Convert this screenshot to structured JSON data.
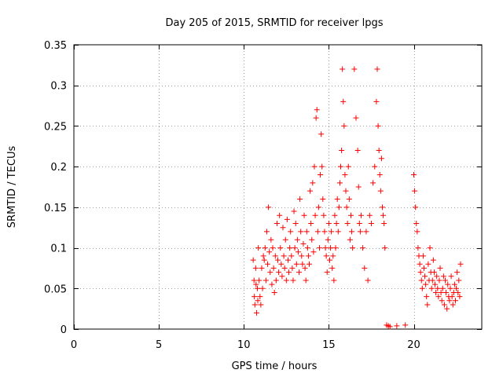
{
  "chart_data": {
    "type": "scatter",
    "title": "Day 205 of 2015, SRMTID for receiver lpgs",
    "xlabel": "GPS time / hours",
    "ylabel": "SRMTID / TECUs",
    "xlim": [
      0,
      24
    ],
    "ylim": [
      0,
      0.35
    ],
    "x_ticks": [
      0,
      5,
      10,
      15,
      20
    ],
    "x_tick_labels": [
      "0",
      "5",
      "10",
      "15",
      "20"
    ],
    "y_ticks": [
      0,
      0.05,
      0.1,
      0.15,
      0.2,
      0.25,
      0.3,
      0.35
    ],
    "y_tick_labels": [
      "0",
      "0.05",
      "0.1",
      "0.15",
      "0.2",
      "0.25",
      "0.3",
      "0.35"
    ],
    "grid": true,
    "marker": "+",
    "series": [
      {
        "name": "SRMTID",
        "color": "#ff0000",
        "x": [
          10.55,
          10.6,
          10.62,
          10.65,
          10.7,
          10.72,
          10.75,
          10.8,
          10.82,
          10.85,
          10.9,
          10.95,
          11.0,
          11.05,
          11.1,
          11.15,
          11.2,
          11.25,
          11.3,
          11.35,
          11.4,
          11.45,
          11.5,
          11.55,
          11.6,
          11.65,
          11.7,
          11.75,
          11.8,
          11.85,
          11.9,
          11.95,
          12.0,
          12.05,
          12.1,
          12.15,
          12.2,
          12.25,
          12.3,
          12.35,
          12.4,
          12.45,
          12.5,
          12.55,
          12.6,
          12.65,
          12.7,
          12.75,
          12.8,
          12.85,
          12.9,
          12.95,
          13.0,
          13.05,
          13.1,
          13.15,
          13.2,
          13.25,
          13.3,
          13.35,
          13.4,
          13.45,
          13.5,
          13.55,
          13.6,
          13.65,
          13.7,
          13.75,
          13.8,
          13.85,
          13.9,
          13.95,
          14.0,
          14.05,
          14.1,
          14.15,
          14.2,
          14.25,
          14.3,
          14.35,
          14.4,
          14.45,
          14.5,
          14.55,
          14.6,
          14.65,
          14.7,
          14.75,
          14.8,
          14.85,
          14.9,
          14.95,
          15.0,
          15.05,
          15.1,
          15.15,
          15.2,
          15.25,
          15.3,
          15.35,
          15.4,
          15.45,
          15.5,
          15.55,
          15.6,
          15.65,
          15.7,
          15.75,
          15.8,
          15.85,
          15.9,
          15.95,
          16.0,
          16.05,
          16.1,
          16.15,
          16.2,
          16.25,
          16.3,
          16.35,
          16.4,
          16.5,
          16.6,
          16.7,
          16.75,
          16.8,
          16.85,
          16.9,
          17.0,
          17.1,
          17.2,
          17.3,
          17.4,
          17.5,
          17.6,
          17.7,
          17.8,
          17.85,
          17.9,
          17.95,
          18.0,
          18.05,
          18.1,
          18.15,
          18.2,
          18.25,
          18.3,
          18.4,
          18.5,
          18.6,
          19.0,
          19.5,
          20.0,
          20.05,
          20.1,
          20.15,
          20.2,
          20.25,
          20.3,
          20.35,
          20.4,
          20.45,
          20.5,
          20.55,
          20.6,
          20.65,
          20.7,
          20.75,
          20.8,
          20.85,
          20.9,
          20.95,
          21.0,
          21.05,
          21.1,
          21.15,
          21.2,
          21.25,
          21.3,
          21.35,
          21.4,
          21.45,
          21.5,
          21.55,
          21.6,
          21.65,
          21.7,
          21.75,
          21.8,
          21.85,
          21.9,
          21.95,
          22.0,
          22.05,
          22.1,
          22.15,
          22.2,
          22.25,
          22.3,
          22.35,
          22.4,
          22.45,
          22.5,
          22.55,
          22.6,
          22.65,
          22.7,
          22.75
        ],
        "y": [
          0.085,
          0.06,
          0.04,
          0.03,
          0.075,
          0.055,
          0.02,
          0.05,
          0.035,
          0.1,
          0.06,
          0.04,
          0.03,
          0.075,
          0.05,
          0.09,
          0.085,
          0.1,
          0.06,
          0.12,
          0.08,
          0.15,
          0.095,
          0.07,
          0.11,
          0.055,
          0.1,
          0.075,
          0.045,
          0.09,
          0.06,
          0.13,
          0.085,
          0.07,
          0.14,
          0.1,
          0.08,
          0.065,
          0.125,
          0.09,
          0.075,
          0.11,
          0.06,
          0.135,
          0.085,
          0.07,
          0.1,
          0.12,
          0.09,
          0.075,
          0.06,
          0.145,
          0.1,
          0.13,
          0.08,
          0.11,
          0.095,
          0.07,
          0.16,
          0.12,
          0.09,
          0.08,
          0.105,
          0.14,
          0.075,
          0.06,
          0.12,
          0.1,
          0.09,
          0.08,
          0.17,
          0.13,
          0.11,
          0.18,
          0.095,
          0.2,
          0.14,
          0.26,
          0.27,
          0.12,
          0.15,
          0.1,
          0.19,
          0.24,
          0.2,
          0.16,
          0.14,
          0.12,
          0.1,
          0.09,
          0.07,
          0.11,
          0.13,
          0.085,
          0.1,
          0.12,
          0.075,
          0.09,
          0.06,
          0.14,
          0.1,
          0.13,
          0.16,
          0.12,
          0.15,
          0.18,
          0.2,
          0.22,
          0.32,
          0.28,
          0.25,
          0.19,
          0.17,
          0.15,
          0.13,
          0.2,
          0.16,
          0.11,
          0.14,
          0.12,
          0.1,
          0.32,
          0.26,
          0.22,
          0.175,
          0.13,
          0.12,
          0.14,
          0.1,
          0.075,
          0.12,
          0.06,
          0.14,
          0.13,
          0.18,
          0.2,
          0.28,
          0.32,
          0.25,
          0.22,
          0.19,
          0.17,
          0.21,
          0.15,
          0.14,
          0.13,
          0.1,
          0.005,
          0.004,
          0.003,
          0.004,
          0.005,
          0.19,
          0.17,
          0.15,
          0.13,
          0.12,
          0.1,
          0.09,
          0.08,
          0.07,
          0.06,
          0.05,
          0.09,
          0.075,
          0.065,
          0.055,
          0.04,
          0.03,
          0.08,
          0.06,
          0.1,
          0.07,
          0.05,
          0.06,
          0.085,
          0.07,
          0.055,
          0.045,
          0.065,
          0.05,
          0.04,
          0.06,
          0.075,
          0.045,
          0.035,
          0.05,
          0.065,
          0.03,
          0.06,
          0.045,
          0.025,
          0.055,
          0.04,
          0.035,
          0.05,
          0.065,
          0.04,
          0.03,
          0.045,
          0.055,
          0.035,
          0.05,
          0.07,
          0.045,
          0.06,
          0.04,
          0.08
        ]
      }
    ]
  }
}
